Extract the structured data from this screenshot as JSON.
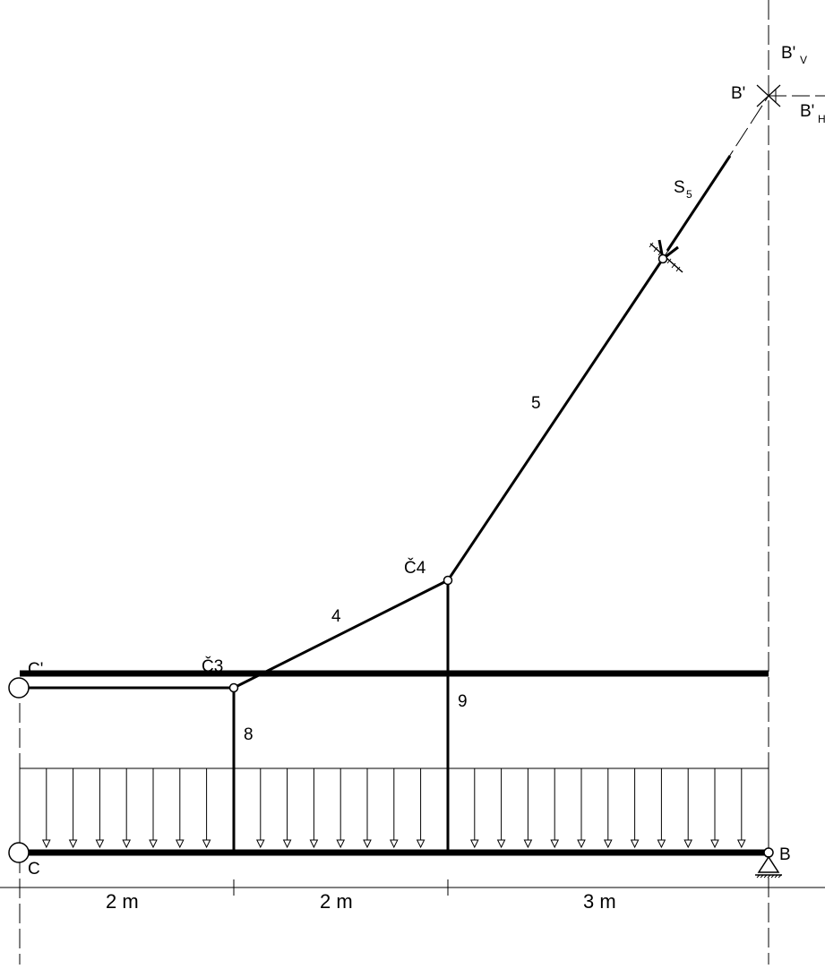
{
  "nodes": {
    "c_prime": "C'",
    "c3": "Č3",
    "c4": "Č4",
    "c": "C",
    "b": "B",
    "b_prime": "B'",
    "bv_main": "B'",
    "bv_sub": "V",
    "bh_main": "B'",
    "bh_sub": "H"
  },
  "members": {
    "m4": "4",
    "m5": "5",
    "m8": "8",
    "m9": "9"
  },
  "force": {
    "main": "S",
    "sub": "5"
  },
  "dimensions": [
    "2 m",
    "2 m",
    "3 m"
  ]
}
